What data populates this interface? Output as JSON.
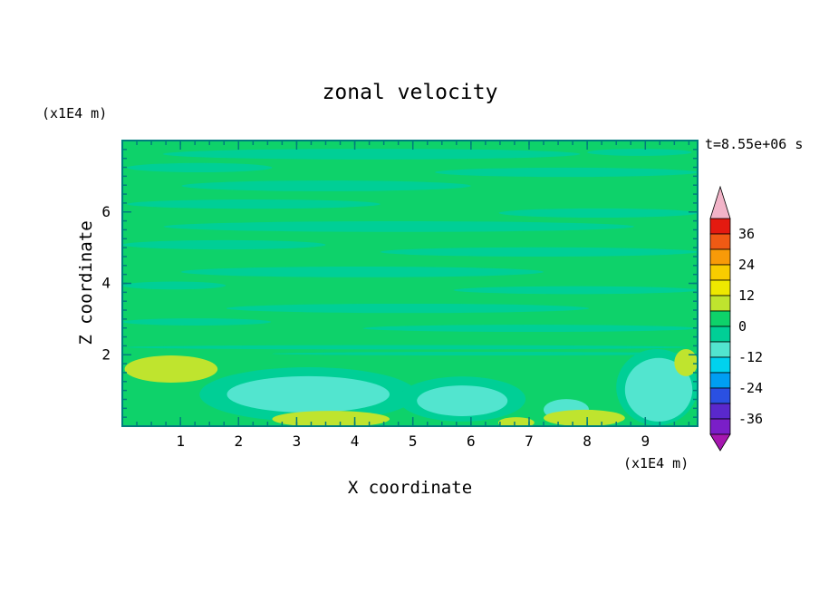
{
  "chart_data": {
    "type": "heatmap",
    "title": "zonal velocity",
    "xlabel": "X coordinate",
    "ylabel": "Z coordinate",
    "x_unit": "(x1E4 m)",
    "y_unit": "(x1E4 m)",
    "time_label": "t=8.55e+06 s",
    "x_range": [
      0,
      9.9
    ],
    "z_range": [
      0,
      8.0
    ],
    "x_ticks": [
      1,
      2,
      3,
      4,
      5,
      6,
      7,
      8,
      9
    ],
    "z_ticks": [
      2,
      4,
      6
    ],
    "x_minor_step": 0.25,
    "z_minor_step": 0.25,
    "frame_color": "#007d7d",
    "background_value": 3,
    "colorbar": {
      "labels": [
        36,
        24,
        12,
        0,
        -12,
        -24,
        -36
      ],
      "segment_step": 6,
      "top_arrow_color": "#f2b4c8",
      "bottom_arrow_color": "#a617b0",
      "levels": [
        {
          "min": 36,
          "max": 42,
          "color": "#e41a10"
        },
        {
          "min": 30,
          "max": 36,
          "color": "#f05a14"
        },
        {
          "min": 24,
          "max": 30,
          "color": "#f89a08"
        },
        {
          "min": 18,
          "max": 24,
          "color": "#f8cc00"
        },
        {
          "min": 12,
          "max": 18,
          "color": "#eee800"
        },
        {
          "min": 6,
          "max": 12,
          "color": "#bfe42e"
        },
        {
          "min": 0,
          "max": 6,
          "color": "#0ed26a"
        },
        {
          "min": -6,
          "max": 0,
          "color": "#00cf96"
        },
        {
          "min": -12,
          "max": -6,
          "color": "#52e5cf"
        },
        {
          "min": -18,
          "max": -12,
          "color": "#00d2ee"
        },
        {
          "min": -24,
          "max": -18,
          "color": "#009ef2"
        },
        {
          "min": -30,
          "max": -24,
          "color": "#2a50e2"
        },
        {
          "min": -36,
          "max": -30,
          "color": "#5a28cc"
        },
        {
          "min": -42,
          "max": -36,
          "color": "#7a1ec8"
        }
      ]
    },
    "features": [
      {
        "x": 4.29,
        "z": 7.62,
        "rx": 3.59,
        "rz": 0.15,
        "value": -3
      },
      {
        "x": 1.33,
        "z": 7.24,
        "rx": 1.25,
        "rz": 0.13,
        "value": -3
      },
      {
        "x": 7.64,
        "z": 7.11,
        "rx": 2.26,
        "rz": 0.13,
        "value": -3
      },
      {
        "x": 8.9,
        "z": 7.67,
        "rx": 0.9,
        "rz": 0.1,
        "value": -3
      },
      {
        "x": 3.51,
        "z": 6.73,
        "rx": 2.49,
        "rz": 0.15,
        "value": -3
      },
      {
        "x": 2.26,
        "z": 6.22,
        "rx": 2.18,
        "rz": 0.13,
        "value": -3
      },
      {
        "x": 8.19,
        "z": 5.97,
        "rx": 1.71,
        "rz": 0.13,
        "value": -3
      },
      {
        "x": 4.76,
        "z": 5.59,
        "rx": 4.05,
        "rz": 0.15,
        "value": -3
      },
      {
        "x": 1.75,
        "z": 5.08,
        "rx": 1.75,
        "rz": 0.13,
        "value": -3
      },
      {
        "x": 7.17,
        "z": 4.88,
        "rx": 2.73,
        "rz": 0.13,
        "value": -3
      },
      {
        "x": 4.13,
        "z": 4.32,
        "rx": 3.12,
        "rz": 0.15,
        "value": -3
      },
      {
        "x": 0.89,
        "z": 3.94,
        "rx": 0.89,
        "rz": 0.11,
        "value": -3
      },
      {
        "x": 7.8,
        "z": 3.81,
        "rx": 2.1,
        "rz": 0.11,
        "value": -3
      },
      {
        "x": 4.91,
        "z": 3.3,
        "rx": 3.12,
        "rz": 0.13,
        "value": -3
      },
      {
        "x": 1.28,
        "z": 2.92,
        "rx": 1.28,
        "rz": 0.1,
        "value": -3
      },
      {
        "x": 7.02,
        "z": 2.74,
        "rx": 2.88,
        "rz": 0.1,
        "value": -3
      },
      {
        "x": 4.91,
        "z": 2.21,
        "rx": 4.83,
        "rz": 0.06,
        "value": -3
      },
      {
        "x": 6.24,
        "z": 2.03,
        "rx": 3.66,
        "rz": 0.05,
        "value": -3
      },
      {
        "x": 3.2,
        "z": 0.89,
        "rx": 1.87,
        "rz": 0.76,
        "value": -3
      },
      {
        "x": 5.85,
        "z": 0.76,
        "rx": 1.09,
        "rz": 0.63,
        "value": -3
      },
      {
        "x": 9.2,
        "z": 1.09,
        "rx": 0.7,
        "rz": 1.07,
        "value": -3
      },
      {
        "x": 3.2,
        "z": 0.89,
        "rx": 1.4,
        "rz": 0.51,
        "value": -9
      },
      {
        "x": 5.85,
        "z": 0.71,
        "rx": 0.78,
        "rz": 0.43,
        "value": -9
      },
      {
        "x": 9.23,
        "z": 1.02,
        "rx": 0.58,
        "rz": 0.89,
        "value": -9
      },
      {
        "x": 7.64,
        "z": 0.46,
        "rx": 0.39,
        "rz": 0.3,
        "value": -9
      },
      {
        "x": 0.84,
        "z": 1.6,
        "rx": 0.8,
        "rz": 0.38,
        "value": 9
      },
      {
        "x": 3.59,
        "z": 0.2,
        "rx": 1.01,
        "rz": 0.23,
        "value": 9
      },
      {
        "x": 7.95,
        "z": 0.23,
        "rx": 0.7,
        "rz": 0.23,
        "value": 9
      },
      {
        "x": 9.7,
        "z": 1.78,
        "rx": 0.2,
        "rz": 0.38,
        "value": 9
      },
      {
        "x": 6.78,
        "z": 0.1,
        "rx": 0.31,
        "rz": 0.15,
        "value": 9
      }
    ]
  }
}
